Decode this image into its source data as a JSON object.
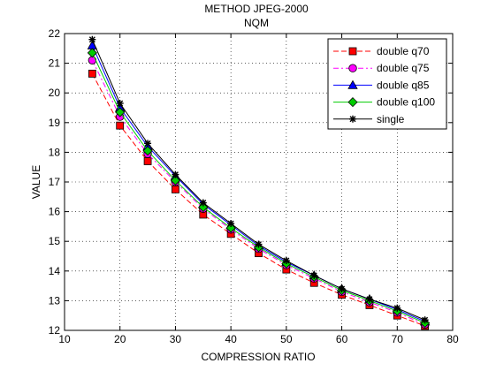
{
  "chart_data": {
    "type": "line",
    "title": "METHOD JPEG-2000",
    "subtitle": "NQM",
    "xlabel": "COMPRESSION RATIO",
    "ylabel": "VALUE",
    "xlim": [
      10,
      80
    ],
    "ylim": [
      12,
      22
    ],
    "xticks": [
      10,
      20,
      30,
      40,
      50,
      60,
      70,
      80
    ],
    "yticks": [
      12,
      13,
      14,
      15,
      16,
      17,
      18,
      19,
      20,
      21,
      22
    ],
    "grid": true,
    "legend_position": "top-right",
    "x": [
      15,
      20,
      25,
      30,
      35,
      40,
      45,
      50,
      55,
      60,
      65,
      70,
      75
    ],
    "series": [
      {
        "name": "double q70",
        "color": "#ff0000",
        "marker": "square",
        "line_style": "dashed",
        "values": [
          20.65,
          18.9,
          17.7,
          16.75,
          15.9,
          15.25,
          14.6,
          14.05,
          13.6,
          13.2,
          12.85,
          12.5,
          12.15
        ]
      },
      {
        "name": "double q75",
        "color": "#ff00ff",
        "marker": "circle",
        "line_style": "dashdot",
        "values": [
          21.1,
          19.2,
          17.95,
          17.0,
          16.1,
          15.4,
          14.75,
          14.2,
          13.75,
          13.3,
          12.95,
          12.6,
          12.2
        ]
      },
      {
        "name": "double q85",
        "color": "#0000ff",
        "marker": "triangle",
        "line_style": "solid",
        "values": [
          21.6,
          19.5,
          18.2,
          17.2,
          16.25,
          15.55,
          14.85,
          14.3,
          13.85,
          13.4,
          13.05,
          12.7,
          12.3
        ]
      },
      {
        "name": "double q100",
        "color": "#00cc00",
        "marker": "diamond",
        "line_style": "solid",
        "values": [
          21.35,
          19.35,
          18.05,
          17.05,
          16.15,
          15.45,
          14.8,
          14.25,
          13.8,
          13.35,
          13.0,
          12.65,
          12.25
        ]
      },
      {
        "name": "single",
        "color": "#000000",
        "marker": "star",
        "line_style": "solid",
        "values": [
          21.8,
          19.65,
          18.3,
          17.25,
          16.3,
          15.6,
          14.9,
          14.35,
          13.85,
          13.4,
          13.05,
          12.75,
          12.35
        ]
      }
    ]
  }
}
